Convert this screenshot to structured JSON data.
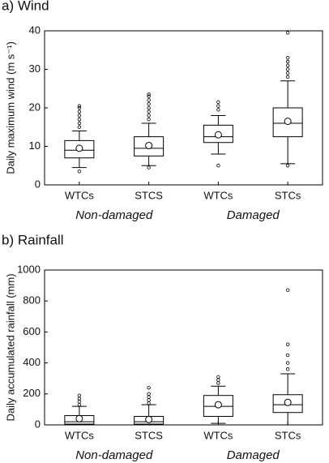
{
  "chart_data": [
    {
      "type": "box",
      "title": "a) Wind",
      "ylabel": "Daily maximum wind (m s⁻¹)",
      "categories": [
        "WTCs",
        "STCS",
        "WTCs",
        "STCs"
      ],
      "group_labels": [
        "Non-damaged",
        "Damaged"
      ],
      "ylim": [
        0,
        40
      ],
      "yticks": [
        0,
        10,
        20,
        30,
        40
      ],
      "boxes": [
        {
          "q1": 7,
          "median": 9,
          "q3": 11.5,
          "mean": 9.5,
          "whisker_low": 4.5,
          "whisker_high": 14,
          "outliers": [
            3.5,
            15,
            16,
            17,
            18,
            19,
            20,
            20.5
          ]
        },
        {
          "q1": 7.5,
          "median": 9.5,
          "q3": 12.5,
          "mean": 10.2,
          "whisker_low": 5,
          "whisker_high": 16,
          "outliers": [
            4.5,
            17,
            18,
            19,
            20,
            21,
            22,
            23,
            23.5
          ]
        },
        {
          "q1": 11,
          "median": 12.5,
          "q3": 15.5,
          "mean": 13,
          "whisker_low": 8,
          "whisker_high": 18,
          "outliers": [
            5,
            19.5,
            20.5,
            21.5
          ]
        },
        {
          "q1": 12.5,
          "median": 16,
          "q3": 20,
          "mean": 16.5,
          "whisker_low": 5.5,
          "whisker_high": 27,
          "outliers": [
            5,
            28,
            29,
            30,
            31,
            32,
            33,
            39.5
          ]
        }
      ]
    },
    {
      "type": "box",
      "title": "b) Rainfall",
      "ylabel": "Daily accumulated rainfall (mm)",
      "categories": [
        "WTCs",
        "STCS",
        "WTCs",
        "STCs"
      ],
      "group_labels": [
        "Non-damaged",
        "Damaged"
      ],
      "ylim": [
        0,
        1000
      ],
      "yticks": [
        0,
        200,
        400,
        600,
        800,
        1000
      ],
      "boxes": [
        {
          "q1": 5,
          "median": 20,
          "q3": 60,
          "mean": 40,
          "whisker_low": 0,
          "whisker_high": 120,
          "outliers": [
            130,
            150,
            170,
            190
          ]
        },
        {
          "q1": 5,
          "median": 20,
          "q3": 55,
          "mean": 35,
          "whisker_low": 0,
          "whisker_high": 130,
          "outliers": [
            140,
            160,
            180,
            200,
            240
          ]
        },
        {
          "q1": 55,
          "median": 120,
          "q3": 190,
          "mean": 130,
          "whisker_low": 10,
          "whisker_high": 250,
          "outliers": [
            270,
            290,
            310
          ]
        },
        {
          "q1": 80,
          "median": 130,
          "q3": 195,
          "mean": 145,
          "whisker_low": 0,
          "whisker_high": 330,
          "outliers": [
            360,
            400,
            450,
            520,
            870
          ]
        }
      ]
    }
  ]
}
